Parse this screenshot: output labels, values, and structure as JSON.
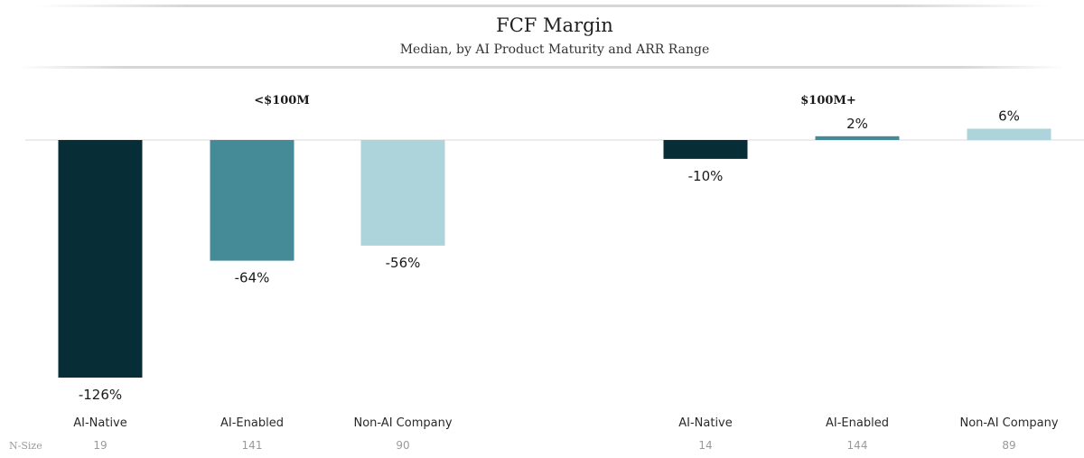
{
  "chart_data": {
    "type": "bar",
    "title": "FCF Margin",
    "subtitle": "Median, by AI Product Maturity and ARR Range",
    "value_format": "percent",
    "groups": [
      {
        "label": "<$100M",
        "bars": [
          {
            "category": "AI-Native",
            "value": -126,
            "label": "-126%",
            "n_size": 19
          },
          {
            "category": "AI-Enabled",
            "value": -64,
            "label": "-64%",
            "n_size": 141
          },
          {
            "category": "Non-AI Company",
            "value": -56,
            "label": "-56%",
            "n_size": 90
          }
        ]
      },
      {
        "label": "$100M+",
        "bars": [
          {
            "category": "AI-Native",
            "value": -10,
            "label": "-10%",
            "n_size": 14
          },
          {
            "category": "AI-Enabled",
            "value": 2,
            "label": "2%",
            "n_size": 144
          },
          {
            "category": "Non-AI Company",
            "value": 6,
            "label": "6%",
            "n_size": 89
          }
        ]
      }
    ],
    "series_colors": {
      "AI-Native": "#072e37",
      "AI-Enabled": "#458a97",
      "Non-AI Company": "#acd4da"
    },
    "n_size_label": "N-Size",
    "baseline_color": "#d9d9d9",
    "grid": false,
    "legend": "none"
  }
}
